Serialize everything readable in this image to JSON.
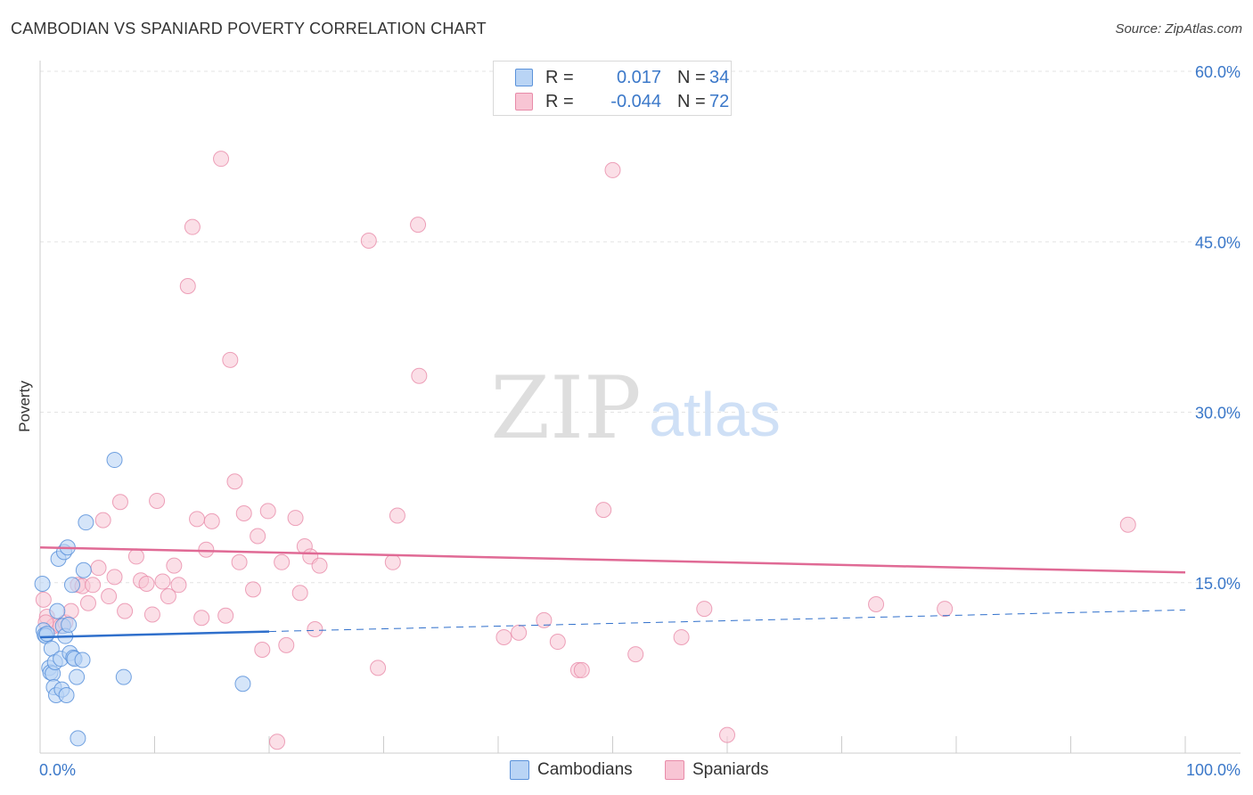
{
  "title": "CAMBODIAN VS SPANIARD POVERTY CORRELATION CHART",
  "source": "Source: ZipAtlas.com",
  "watermark": {
    "zip": "ZIP",
    "atlas": "atlas"
  },
  "colors": {
    "cambodians_fill": "#b9d4f5",
    "cambodians_stroke": "#5b92da",
    "cambodians_line": "#2f6fcb",
    "spaniards_fill": "#f8c5d4",
    "spaniards_stroke": "#e88ba9",
    "spaniards_line": "#e06a95",
    "axis_label": "#3b78c9",
    "grid": "#e3e3e3"
  },
  "legend": {
    "rows": [
      {
        "r_label": "R =",
        "r_value": "0.017",
        "n_label": "N =",
        "n_value": "34"
      },
      {
        "r_label": "R =",
        "r_value": "-0.044",
        "n_label": "N =",
        "n_value": "72"
      }
    ]
  },
  "bottom_legend": {
    "cambodians": "Cambodians",
    "spaniards": "Spaniards"
  },
  "chart_data": {
    "type": "scatter",
    "title": "CAMBODIAN VS SPANIARD POVERTY CORRELATION CHART",
    "xlabel": "",
    "ylabel": "Poverty",
    "xlim": [
      0,
      100
    ],
    "ylim": [
      0,
      60
    ],
    "x_tick_labels": [
      "0.0%",
      "100.0%"
    ],
    "y_ticks": [
      15,
      30,
      45,
      60
    ],
    "y_tick_labels": [
      "15.0%",
      "30.0%",
      "45.0%",
      "60.0%"
    ],
    "grid": true,
    "series": [
      {
        "name": "Cambodians",
        "r": 0.017,
        "n": 34,
        "trend": {
          "x0": 0,
          "y0": 10.2,
          "x1": 20,
          "y1": 10.7,
          "dashed_to_x": 100,
          "dashed_y1": 12.6
        },
        "points": [
          [
            0.2,
            14.9
          ],
          [
            0.3,
            10.8
          ],
          [
            0.4,
            10.4
          ],
          [
            0.5,
            10.3
          ],
          [
            0.6,
            10.5
          ],
          [
            0.8,
            7.5
          ],
          [
            0.9,
            7.1
          ],
          [
            1.0,
            9.2
          ],
          [
            1.1,
            7.0
          ],
          [
            1.2,
            5.8
          ],
          [
            1.3,
            8.0
          ],
          [
            1.4,
            5.1
          ],
          [
            1.5,
            12.5
          ],
          [
            1.6,
            17.1
          ],
          [
            1.8,
            8.3
          ],
          [
            1.9,
            5.6
          ],
          [
            2.0,
            11.2
          ],
          [
            2.1,
            17.7
          ],
          [
            2.2,
            10.3
          ],
          [
            2.3,
            5.1
          ],
          [
            2.5,
            11.3
          ],
          [
            2.4,
            18.1
          ],
          [
            2.6,
            8.8
          ],
          [
            2.8,
            14.8
          ],
          [
            2.9,
            8.4
          ],
          [
            3.0,
            8.3
          ],
          [
            3.2,
            6.7
          ],
          [
            3.3,
            1.3
          ],
          [
            3.7,
            8.2
          ],
          [
            3.8,
            16.1
          ],
          [
            4.0,
            20.3
          ],
          [
            6.5,
            25.8
          ],
          [
            7.3,
            6.7
          ],
          [
            17.7,
            6.1
          ]
        ]
      },
      {
        "name": "Spaniards",
        "r": -0.044,
        "n": 72,
        "trend": {
          "x0": 0,
          "y0": 18.1,
          "x1": 100,
          "y1": 15.9
        },
        "points": [
          [
            0.3,
            13.5
          ],
          [
            0.6,
            12.0
          ],
          [
            1.2,
            11.2
          ],
          [
            1.8,
            11.2
          ],
          [
            2.2,
            11.5
          ],
          [
            2.7,
            12.5
          ],
          [
            3.3,
            14.8
          ],
          [
            3.7,
            14.7
          ],
          [
            4.2,
            13.2
          ],
          [
            4.6,
            14.8
          ],
          [
            5.1,
            16.3
          ],
          [
            5.5,
            20.5
          ],
          [
            6.0,
            13.8
          ],
          [
            6.5,
            15.5
          ],
          [
            7.0,
            22.1
          ],
          [
            7.4,
            12.5
          ],
          [
            8.4,
            17.3
          ],
          [
            8.8,
            15.2
          ],
          [
            9.3,
            14.9
          ],
          [
            9.8,
            12.2
          ],
          [
            10.2,
            22.2
          ],
          [
            10.7,
            15.1
          ],
          [
            11.2,
            13.8
          ],
          [
            11.7,
            16.5
          ],
          [
            12.1,
            14.8
          ],
          [
            12.9,
            41.1
          ],
          [
            13.3,
            46.3
          ],
          [
            13.7,
            20.6
          ],
          [
            14.1,
            11.9
          ],
          [
            14.5,
            17.9
          ],
          [
            15.0,
            20.4
          ],
          [
            15.8,
            52.3
          ],
          [
            16.2,
            12.1
          ],
          [
            16.6,
            34.6
          ],
          [
            17.0,
            23.9
          ],
          [
            17.4,
            16.8
          ],
          [
            17.8,
            21.1
          ],
          [
            18.6,
            14.4
          ],
          [
            19.0,
            19.1
          ],
          [
            19.4,
            9.1
          ],
          [
            19.9,
            21.3
          ],
          [
            20.7,
            1.0
          ],
          [
            21.1,
            16.8
          ],
          [
            21.5,
            9.5
          ],
          [
            22.3,
            20.7
          ],
          [
            22.7,
            14.1
          ],
          [
            23.1,
            18.2
          ],
          [
            23.6,
            17.3
          ],
          [
            24.0,
            10.9
          ],
          [
            24.4,
            16.5
          ],
          [
            28.7,
            45.1
          ],
          [
            29.5,
            7.5
          ],
          [
            30.8,
            16.8
          ],
          [
            31.2,
            20.9
          ],
          [
            33.0,
            46.5
          ],
          [
            33.1,
            33.2
          ],
          [
            40.5,
            10.2
          ],
          [
            41.8,
            10.6
          ],
          [
            44.0,
            11.7
          ],
          [
            45.2,
            9.8
          ],
          [
            47.0,
            7.3
          ],
          [
            47.3,
            7.3
          ],
          [
            49.2,
            21.4
          ],
          [
            50.0,
            51.3
          ],
          [
            52.0,
            8.7
          ],
          [
            56.0,
            10.2
          ],
          [
            58.0,
            12.7
          ],
          [
            60.0,
            1.6
          ],
          [
            73.0,
            13.1
          ],
          [
            79.0,
            12.7
          ],
          [
            95.0,
            20.1
          ],
          [
            0.5,
            11.5
          ]
        ]
      }
    ]
  }
}
